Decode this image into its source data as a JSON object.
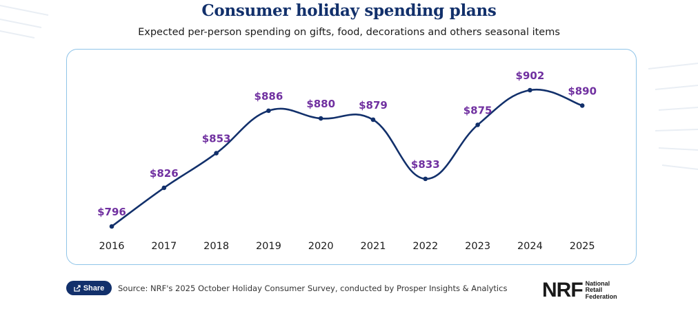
{
  "header": {
    "title": "Consumer holiday spending plans",
    "subtitle": "Expected per-person spending on gifts, food, decorations and others seasonal items"
  },
  "footer": {
    "share_label": "Share",
    "source": "Source: NRF's 2025 October Holiday Consumer Survey, conducted by Prosper Insights & Analytics",
    "logo_mark": "NRF",
    "logo_lines": [
      "National",
      "Retail",
      "Federation"
    ]
  },
  "colors": {
    "line": "#12306b",
    "label": "#7030a0",
    "card_border": "#8fc4e8"
  },
  "chart_data": {
    "type": "line",
    "title": "Consumer holiday spending plans",
    "subtitle": "Expected per-person spending on gifts, food, decorations and others seasonal items",
    "categories": [
      "2016",
      "2017",
      "2018",
      "2019",
      "2020",
      "2021",
      "2022",
      "2023",
      "2024",
      "2025"
    ],
    "values": [
      796,
      826,
      853,
      886,
      880,
      879,
      833,
      875,
      902,
      890
    ],
    "data_labels": [
      "$796",
      "$826",
      "$853",
      "$886",
      "$880",
      "$879",
      "$833",
      "$875",
      "$902",
      "$890"
    ],
    "xlabel": "",
    "ylabel": "",
    "ylim": [
      790,
      910
    ],
    "grid": false,
    "smooth": true,
    "y_axis_visible": false
  }
}
